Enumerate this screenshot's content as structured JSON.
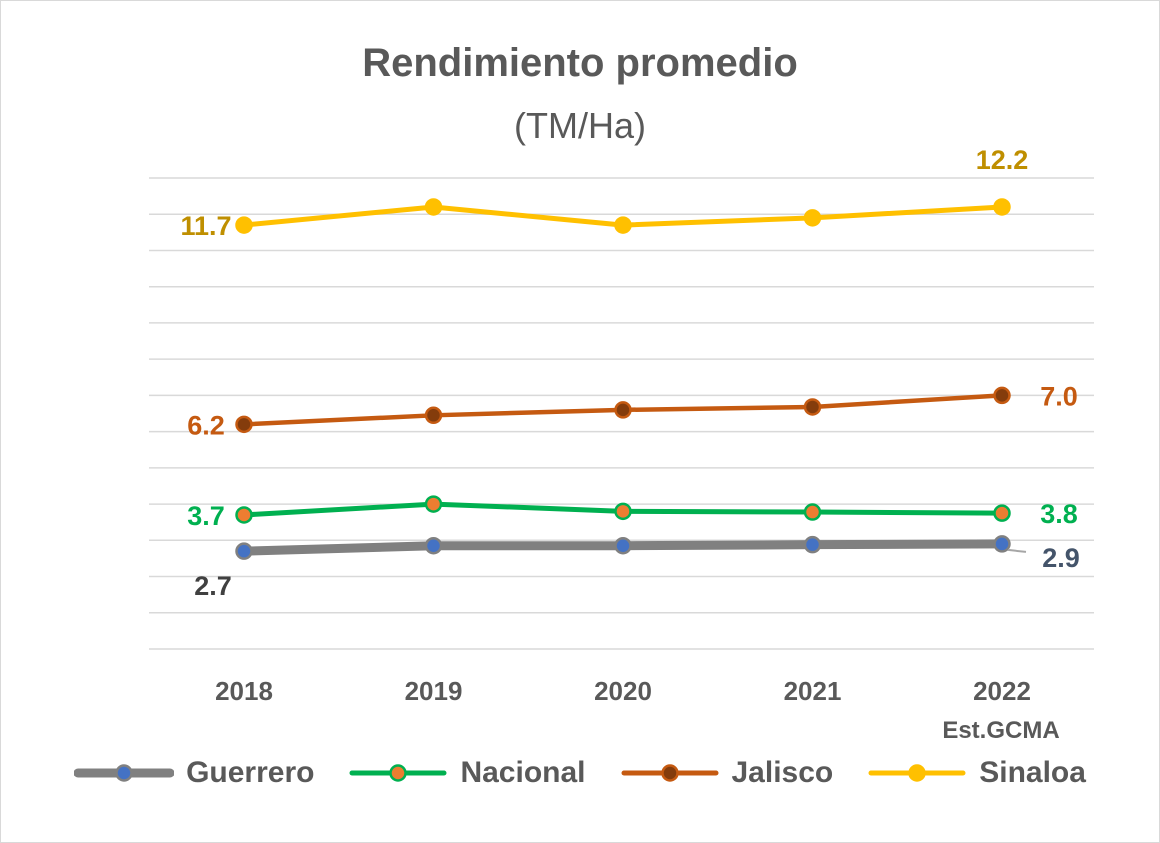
{
  "chart_data": {
    "type": "line",
    "title": "Rendimiento promedio",
    "subtitle": "(TM/Ha)",
    "categories": [
      "2018",
      "2019",
      "2020",
      "2021",
      "2022"
    ],
    "category_note": "Est.GCMA",
    "ylim": [
      0,
      13
    ],
    "grid": true,
    "legend_position": "bottom",
    "series": [
      {
        "name": "Guerrero",
        "values": [
          2.7,
          2.85,
          2.85,
          2.88,
          2.9
        ],
        "line_color": "#808080",
        "marker_color": "#4472c4",
        "label_color": "#404040",
        "label_color_last": "#44546a",
        "first_label": "2.7",
        "last_label": "2.9"
      },
      {
        "name": "Nacional",
        "values": [
          3.7,
          4.0,
          3.8,
          3.78,
          3.75
        ],
        "line_color": "#00b050",
        "marker_color": "#ed7d31",
        "label_color": "#00b050",
        "first_label": "3.7",
        "last_label": "3.8"
      },
      {
        "name": "Jalisco",
        "values": [
          6.2,
          6.45,
          6.6,
          6.68,
          7.0
        ],
        "line_color": "#c55a11",
        "marker_color": "#843c0c",
        "label_color": "#c55a11",
        "first_label": "6.2",
        "last_label": "7.0"
      },
      {
        "name": "Sinaloa",
        "values": [
          11.7,
          12.2,
          11.7,
          11.9,
          12.2
        ],
        "line_color": "#ffc000",
        "marker_color": "#ffc000",
        "label_color": "#bf8f00",
        "first_label": "11.7",
        "last_label": "12.2"
      }
    ]
  }
}
